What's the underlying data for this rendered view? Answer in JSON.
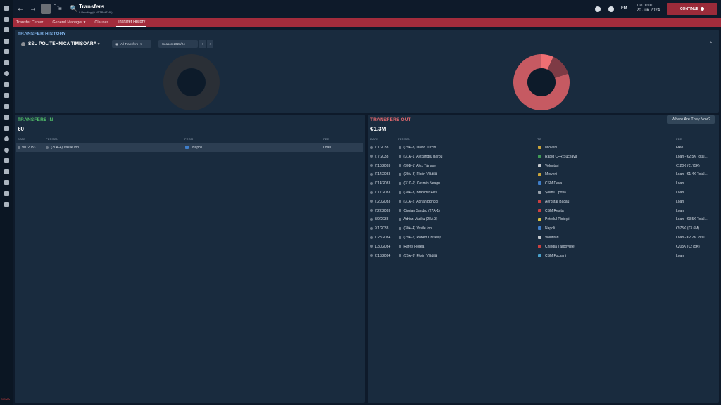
{
  "topbar": {
    "title": "Transfers",
    "subtitle": "0 Pending (0 HTTP/HTML)",
    "day_time": "Tue 00:00",
    "date": "20 Jun 2024",
    "continue_label": "CONTINUE",
    "fm_logo": "FM",
    "back_icon": "←",
    "forward_icon": "→",
    "search_icon": "🔍",
    "menu_icon": "≡",
    "updown_icon": "⌃⌄"
  },
  "subnav": {
    "tabs": [
      "Transfer Center",
      "General Manager ▾",
      "Clauses",
      "Transfer History"
    ],
    "active_index": 3
  },
  "history": {
    "title": "TRANSFER HISTORY",
    "club": "SSU POLITEHNICA TIMIŞOARA",
    "filter": "All Transfers",
    "season": "Season 2023/24",
    "prev": "‹",
    "next": "›",
    "collapse": "⌃"
  },
  "transfers_in": {
    "title": "TRANSFERS IN",
    "total": "€0",
    "headers": {
      "date": "DATE",
      "person": "PERSON",
      "from": "FROM",
      "fee": "FEE"
    },
    "rows": [
      {
        "date": "9/1/2033",
        "person": "(30A-4) Vasile Ion",
        "club": "Napoli",
        "fee": "Loan",
        "crest": "#3f7ec9"
      }
    ]
  },
  "transfers_out": {
    "title": "TRANSFERS OUT",
    "total": "€1.3M",
    "where_button": "Where Are They Now?",
    "headers": {
      "date": "DATE",
      "person": "PERSON",
      "to": "TO",
      "fee": "FEE"
    },
    "rows": [
      {
        "date": "7/1/2033",
        "person": "(29A-8) David Turcin",
        "club": "Mioveni",
        "fee": "Free",
        "crest": "#c9a43a"
      },
      {
        "date": "7/7/2033",
        "person": "(31A-1) Alexandru Barbu",
        "club": "Rapid CFR Suceava",
        "fee": "Loan - €2.5K Total...",
        "crest": "#3f9a55"
      },
      {
        "date": "7/10/2033",
        "person": "(30B-1) Alex Tănase",
        "club": "Voluntari",
        "fee": "€120K (€175K)",
        "crest": "#c4c8cc"
      },
      {
        "date": "7/14/2033",
        "person": "(29A-3) Florin Vlădilă",
        "club": "Mioveni",
        "fee": "Loan - €1.4K Total...",
        "crest": "#c9a43a"
      },
      {
        "date": "7/14/2033",
        "person": "(31C-2) Cosmin Neagu",
        "club": "CSM Deva",
        "fee": "Loan",
        "crest": "#3f7ec9"
      },
      {
        "date": "7/17/2033",
        "person": "(30A-3) Branimir Feti",
        "club": "Şoimii Lipova",
        "fee": "Loan",
        "crest": "#9aa2ab"
      },
      {
        "date": "7/20/2033",
        "person": "(31A-2) Adrian Boncoi",
        "club": "Aerostar Bacău",
        "fee": "Loan",
        "crest": "#c94040"
      },
      {
        "date": "7/22/2033",
        "person": "Ciprian Şandru (27A-1)",
        "club": "CSM Reşiţa",
        "fee": "Loan",
        "crest": "#c94040"
      },
      {
        "date": "8/9/2033",
        "person": "Adrian Vasiliu (28A-3)",
        "club": "Petrolul Ploieşti",
        "fee": "Loan - €3.5K Total...",
        "crest": "#d8c040"
      },
      {
        "date": "9/1/2033",
        "person": "(30A-4) Vasile Ion",
        "club": "Napoli",
        "fee": "€975K (€3.6M)",
        "crest": "#3f7ec9"
      },
      {
        "date": "1/28/2034",
        "person": "(29A-2) Robert Chiseliţă",
        "club": "Voluntari",
        "fee": "Loan - €2.2K Total...",
        "crest": "#c4c8cc"
      },
      {
        "date": "1/30/2034",
        "person": "Rareş Florea",
        "club": "Chindia Târgovişte",
        "fee": "€205K (€275K)",
        "crest": "#c94040"
      },
      {
        "date": "2/13/2034",
        "person": "(29A-3) Florin Vlădilă",
        "club": "CSM Focşani",
        "fee": "Loan",
        "crest": "#4aa0c9"
      }
    ]
  },
  "charts": {
    "in_donut_color": "#2a2f36",
    "out_donut_colors": [
      "#c65a62",
      "#ef6f73",
      "#7e3b45"
    ],
    "out_donut_fractions": [
      0.8,
      0.07,
      0.13
    ]
  },
  "footer_logo": "SIGMA"
}
